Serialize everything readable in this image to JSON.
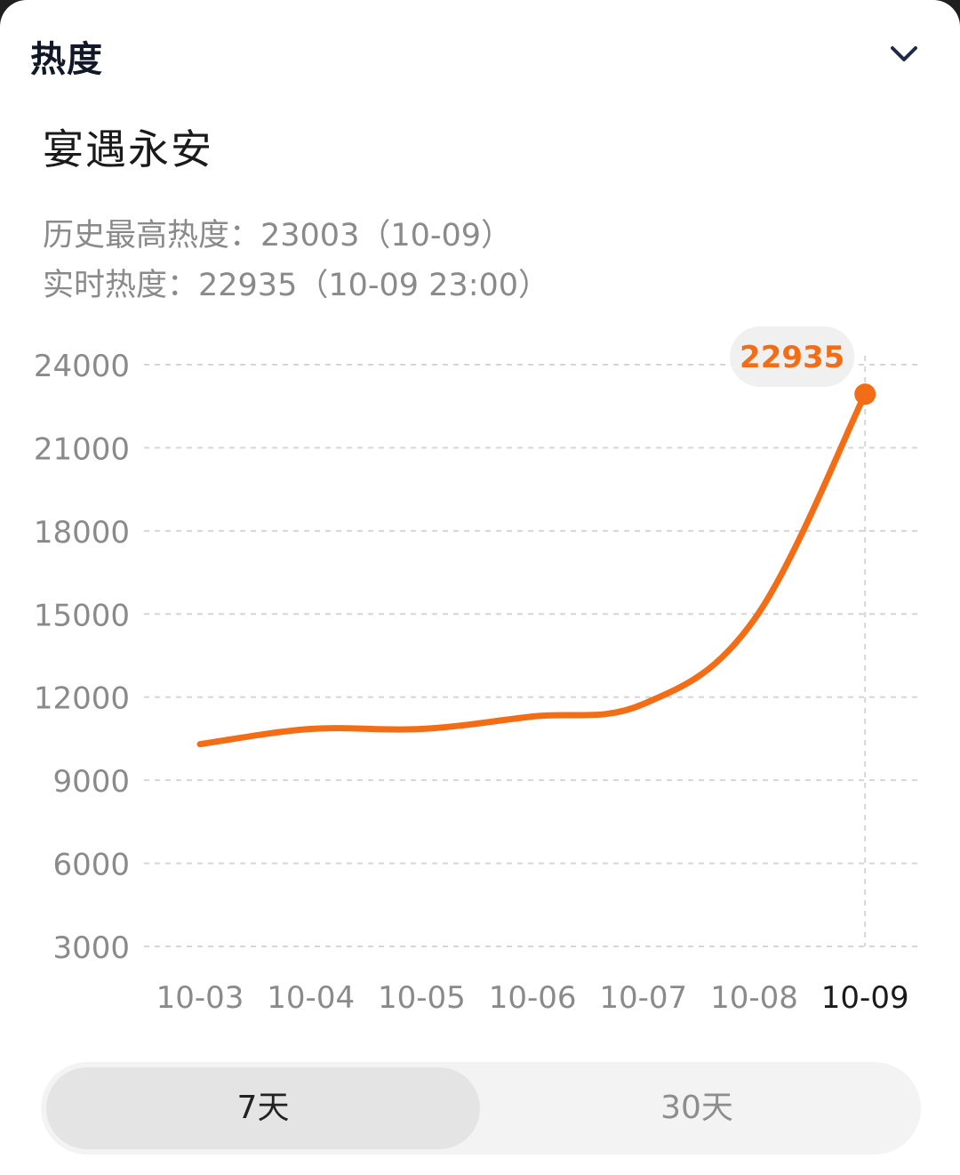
{
  "header": {
    "title": "热度",
    "collapse_icon": "chevron-down-icon"
  },
  "topic": {
    "title": "宴遇永安"
  },
  "stats": {
    "peak_line": "历史最高热度：23003（10-09）",
    "live_line": "实时热度：22935（10-09 23:00）"
  },
  "range_toggle": {
    "options": [
      "7天",
      "30天"
    ],
    "selected": "7天"
  },
  "colors": {
    "line": "#f36c16",
    "callout_bg": "#f0f0f0",
    "callout_text": "#f36c16",
    "grid": "#d6d6d6",
    "tick": "#8a8a8a",
    "tick_active": "#1a1a1a"
  },
  "chart_data": {
    "type": "line",
    "categories": [
      "10-03",
      "10-04",
      "10-05",
      "10-06",
      "10-07",
      "10-08",
      "10-09"
    ],
    "y_ticks": [
      3000,
      6000,
      9000,
      12000,
      15000,
      18000,
      21000,
      24000
    ],
    "ylim": [
      3000,
      24000
    ],
    "highlight_category": "10-09",
    "series": [
      {
        "values": [
          {
            "x": "10-03",
            "y": 10300
          },
          {
            "x": "10-04",
            "y": 10850
          },
          {
            "x": "10-05",
            "y": 10850
          },
          {
            "x": "10-06",
            "y": 11300
          },
          {
            "x": "10-07",
            "y": 11750
          },
          {
            "x": "10-08",
            "y": 14800
          },
          {
            "x": "10-09",
            "y": 22935
          }
        ]
      }
    ],
    "callout": {
      "x": "10-09",
      "label": "22935"
    },
    "grid": true
  }
}
